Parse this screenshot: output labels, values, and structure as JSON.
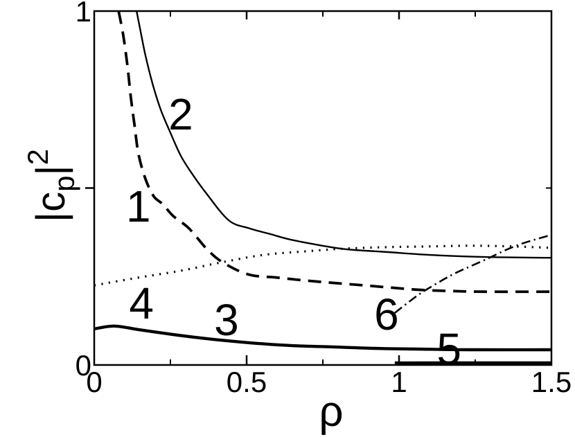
{
  "figure": {
    "background": "#ffffff",
    "ink": "#000000",
    "description": "Black-and-white physics line plot of |c_p|^2 versus rho with six numbered curves"
  },
  "chart_data": {
    "type": "line",
    "title": "",
    "xlabel": "ρ",
    "ylabel": "|c_p|^2",
    "ylabel_parts": {
      "base": "|c",
      "sub": "p",
      "bar": "|",
      "sup": "2"
    },
    "xlim": [
      0,
      1.5
    ],
    "ylim": [
      0,
      1
    ],
    "grid": false,
    "legend_position": "none",
    "x_ticks_major": [
      {
        "value": 0,
        "label": "0"
      },
      {
        "value": 0.5,
        "label": "0.5"
      },
      {
        "value": 1,
        "label": "1"
      },
      {
        "value": 1.5,
        "label": "1.5"
      }
    ],
    "x_ticks_minor": [
      0.25,
      0.75,
      1.25
    ],
    "y_ticks_major": [
      {
        "value": 0,
        "label": "0"
      },
      {
        "value": 1,
        "label": "1"
      }
    ],
    "y_ticks_minor": [
      0.5
    ],
    "series": [
      {
        "name": "1",
        "style": "dashed",
        "width": 3.8,
        "points": [
          [
            0.08,
            1.0
          ],
          [
            0.095,
            0.933
          ],
          [
            0.109,
            0.845
          ],
          [
            0.12,
            0.757
          ],
          [
            0.132,
            0.679
          ],
          [
            0.145,
            0.597
          ],
          [
            0.168,
            0.526
          ],
          [
            0.195,
            0.477
          ],
          [
            0.225,
            0.454
          ],
          [
            0.259,
            0.421
          ],
          [
            0.311,
            0.386
          ],
          [
            0.366,
            0.331
          ],
          [
            0.418,
            0.292
          ],
          [
            0.505,
            0.256
          ],
          [
            0.6,
            0.247
          ],
          [
            0.714,
            0.237
          ],
          [
            0.827,
            0.229
          ],
          [
            0.941,
            0.221
          ],
          [
            1.055,
            0.213
          ],
          [
            1.168,
            0.209
          ],
          [
            1.282,
            0.207
          ],
          [
            1.5,
            0.207
          ]
        ]
      },
      {
        "name": "2",
        "style": "solid",
        "width": 2.4,
        "points": [
          [
            0.139,
            1.0
          ],
          [
            0.152,
            0.943
          ],
          [
            0.168,
            0.875
          ],
          [
            0.191,
            0.796
          ],
          [
            0.218,
            0.722
          ],
          [
            0.248,
            0.66
          ],
          [
            0.284,
            0.591
          ],
          [
            0.323,
            0.538
          ],
          [
            0.366,
            0.487
          ],
          [
            0.441,
            0.409
          ],
          [
            0.509,
            0.386
          ],
          [
            0.577,
            0.37
          ],
          [
            0.645,
            0.354
          ],
          [
            0.736,
            0.339
          ],
          [
            0.827,
            0.327
          ],
          [
            0.964,
            0.319
          ],
          [
            1.1,
            0.311
          ],
          [
            1.282,
            0.305
          ],
          [
            1.5,
            0.303
          ]
        ]
      },
      {
        "name": "3",
        "style": "solid",
        "width": 4.4,
        "points": [
          [
            0.0,
            0.102
          ],
          [
            0.066,
            0.11
          ],
          [
            0.145,
            0.1
          ],
          [
            0.259,
            0.086
          ],
          [
            0.373,
            0.074
          ],
          [
            0.505,
            0.063
          ],
          [
            0.645,
            0.055
          ],
          [
            0.782,
            0.051
          ],
          [
            0.918,
            0.047
          ],
          [
            1.055,
            0.045
          ],
          [
            1.236,
            0.043
          ],
          [
            1.5,
            0.043
          ]
        ]
      },
      {
        "name": "4",
        "style": "dotted",
        "width": 3.2,
        "points": [
          [
            0.0,
            0.225
          ],
          [
            0.145,
            0.247
          ],
          [
            0.282,
            0.266
          ],
          [
            0.418,
            0.29
          ],
          [
            0.555,
            0.311
          ],
          [
            0.691,
            0.321
          ],
          [
            0.827,
            0.329
          ],
          [
            0.964,
            0.333
          ],
          [
            1.1,
            0.335
          ],
          [
            1.236,
            0.337
          ],
          [
            1.373,
            0.335
          ],
          [
            1.5,
            0.331
          ]
        ]
      },
      {
        "name": "5",
        "style": "solid",
        "width": 4.2,
        "points": [
          [
            0.986,
            0.006
          ],
          [
            1.2,
            0.006
          ],
          [
            1.5,
            0.006
          ]
        ]
      },
      {
        "name": "6",
        "style": "dashdot",
        "width": 2.6,
        "points": [
          [
            0.986,
            0.147
          ],
          [
            1.032,
            0.178
          ],
          [
            1.077,
            0.206
          ],
          [
            1.145,
            0.241
          ],
          [
            1.191,
            0.262
          ],
          [
            1.282,
            0.297
          ],
          [
            1.384,
            0.337
          ],
          [
            1.5,
            0.368
          ]
        ]
      }
    ],
    "annotations": [
      {
        "text": "1",
        "x": 0.145,
        "y": 0.45
      },
      {
        "text": "2",
        "x": 0.284,
        "y": 0.71
      },
      {
        "text": "3",
        "x": 0.434,
        "y": 0.129
      },
      {
        "text": "4",
        "x": 0.155,
        "y": 0.176
      },
      {
        "text": "5",
        "x": 1.164,
        "y": 0.047
      },
      {
        "text": "6",
        "x": 0.959,
        "y": 0.145
      }
    ]
  }
}
